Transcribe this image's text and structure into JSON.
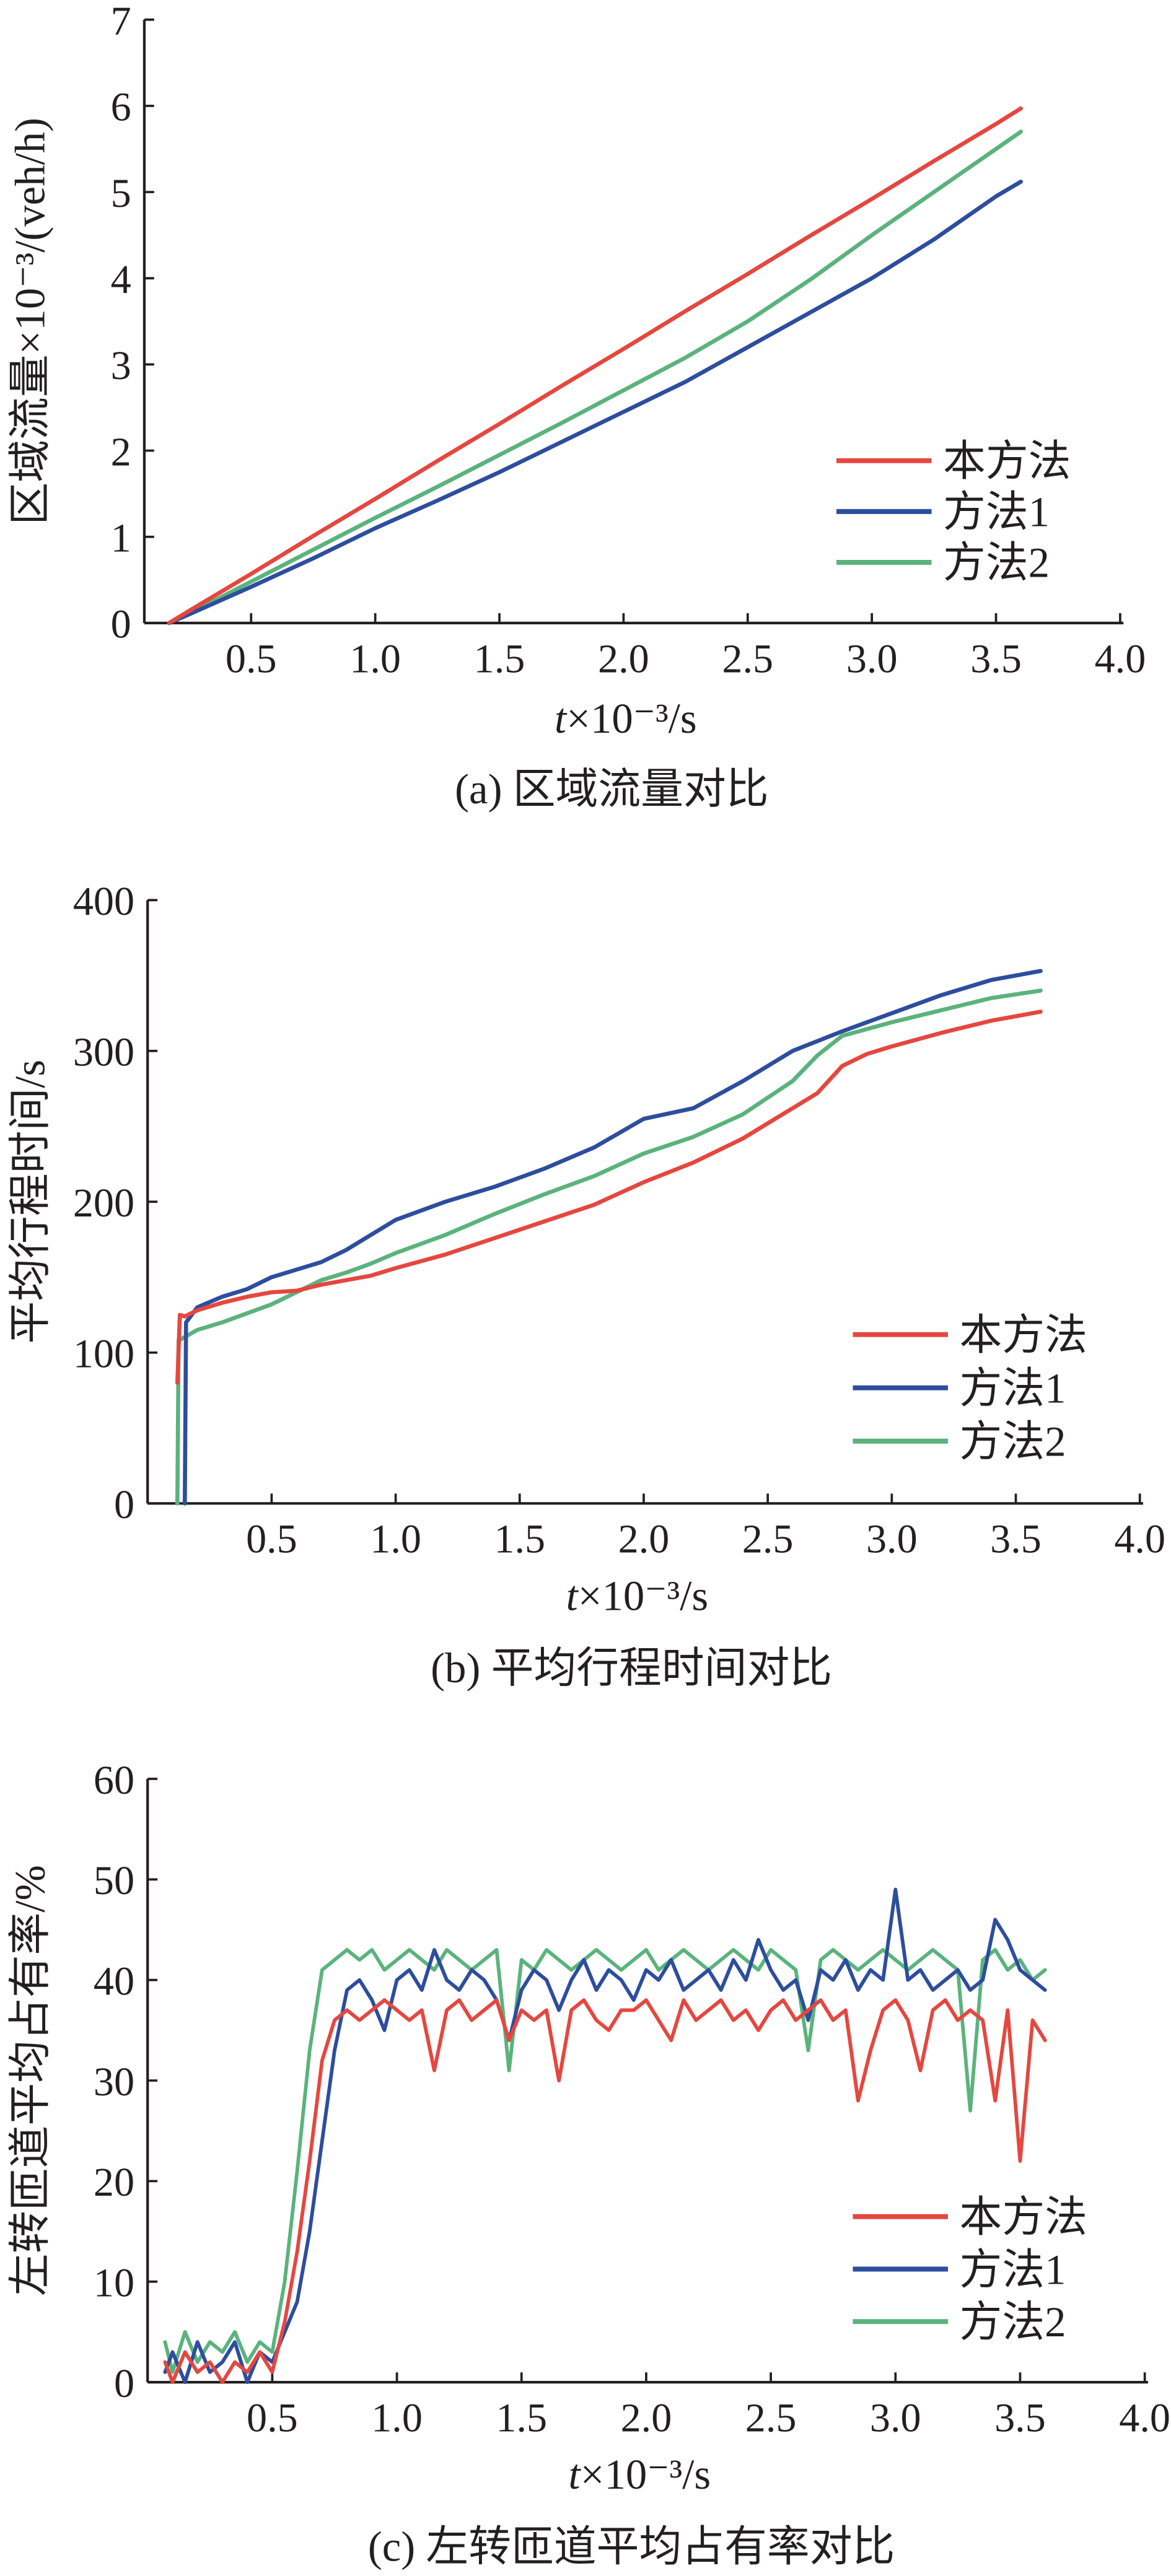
{
  "chart_data": [
    {
      "type": "line",
      "caption": "(a) 区域流量对比",
      "xlabel": "t×10⁻³/s",
      "ylabel": "区域流量×10⁻³/(veh/h)",
      "xlim": [
        0.07,
        4.0
      ],
      "ylim": [
        0,
        7
      ],
      "xticks": [
        "0.5",
        "1.0",
        "1.5",
        "2.0",
        "2.5",
        "3.0",
        "3.5",
        "4.0"
      ],
      "yticks": [
        "0",
        "1",
        "2",
        "3",
        "4",
        "5",
        "6",
        "7"
      ],
      "grid": false,
      "legend_position": "lower-right",
      "series": [
        {
          "name": "本方法",
          "color": "#e5473f",
          "x": [
            0.17,
            0.25,
            0.5,
            0.75,
            1.0,
            1.25,
            1.5,
            1.75,
            2.0,
            2.25,
            2.5,
            2.75,
            3.0,
            3.25,
            3.5,
            3.6
          ],
          "values": [
            0,
            0.14,
            0.57,
            1.01,
            1.44,
            1.88,
            2.31,
            2.75,
            3.18,
            3.62,
            4.05,
            4.49,
            4.92,
            5.36,
            5.79,
            5.97
          ]
        },
        {
          "name": "方法1",
          "color": "#2d4d9e",
          "x": [
            0.17,
            0.25,
            0.5,
            0.75,
            1.0,
            1.25,
            1.5,
            1.75,
            2.0,
            2.25,
            2.5,
            2.75,
            3.0,
            3.25,
            3.5,
            3.6
          ],
          "values": [
            0,
            0.1,
            0.42,
            0.75,
            1.1,
            1.42,
            1.75,
            2.1,
            2.45,
            2.8,
            3.2,
            3.6,
            4.0,
            4.45,
            4.95,
            5.12
          ]
        },
        {
          "name": "方法2",
          "color": "#5ab37c",
          "x": [
            0.17,
            0.25,
            0.5,
            0.75,
            1.0,
            1.25,
            1.5,
            1.75,
            2.0,
            2.25,
            2.5,
            2.75,
            3.0,
            3.25,
            3.5,
            3.6
          ],
          "values": [
            0,
            0.11,
            0.48,
            0.85,
            1.22,
            1.58,
            1.95,
            2.32,
            2.7,
            3.08,
            3.5,
            3.98,
            4.5,
            5.0,
            5.5,
            5.7
          ]
        }
      ]
    },
    {
      "type": "line",
      "caption": "(b) 平均行程时间对比",
      "xlabel": "t×10⁻³/s",
      "ylabel": "平均行程时间/s",
      "xlim": [
        0,
        4.0
      ],
      "ylim": [
        0,
        400
      ],
      "xticks": [
        "0.5",
        "1.0",
        "1.5",
        "2.0",
        "2.5",
        "3.0",
        "3.5",
        "4.0"
      ],
      "yticks": [
        "0",
        "100",
        "200",
        "300",
        "400"
      ],
      "grid": false,
      "legend_position": "lower-right",
      "series": [
        {
          "name": "本方法",
          "color": "#e5473f",
          "x": [
            0.12,
            0.13,
            0.15,
            0.2,
            0.3,
            0.4,
            0.5,
            0.6,
            0.7,
            0.8,
            0.9,
            1.0,
            1.2,
            1.4,
            1.6,
            1.8,
            2.0,
            2.2,
            2.4,
            2.6,
            2.7,
            2.8,
            2.9,
            3.0,
            3.2,
            3.4,
            3.6
          ],
          "values": [
            80,
            125,
            124,
            128,
            133,
            137,
            140,
            141,
            145,
            148,
            151,
            156,
            165,
            176,
            187,
            198,
            213,
            226,
            242,
            262,
            272,
            290,
            298,
            303,
            312,
            320,
            326
          ]
        },
        {
          "name": "方法1",
          "color": "#2d4d9e",
          "x": [
            0.15,
            0.155,
            0.2,
            0.3,
            0.4,
            0.5,
            0.6,
            0.7,
            0.8,
            0.9,
            1.0,
            1.2,
            1.4,
            1.6,
            1.8,
            2.0,
            2.2,
            2.4,
            2.6,
            2.8,
            3.0,
            3.2,
            3.4,
            3.6
          ],
          "values": [
            0,
            120,
            130,
            137,
            142,
            150,
            155,
            160,
            168,
            178,
            188,
            200,
            210,
            222,
            236,
            255,
            262,
            280,
            300,
            313,
            325,
            337,
            347,
            353
          ]
        },
        {
          "name": "方法2",
          "color": "#5ab37c",
          "x": [
            0.12,
            0.125,
            0.2,
            0.3,
            0.4,
            0.5,
            0.6,
            0.7,
            0.8,
            0.9,
            1.0,
            1.2,
            1.4,
            1.6,
            1.8,
            2.0,
            2.2,
            2.4,
            2.6,
            2.7,
            2.8,
            3.0,
            3.2,
            3.4,
            3.6
          ],
          "values": [
            0,
            108,
            115,
            120,
            126,
            132,
            140,
            148,
            153,
            159,
            166,
            178,
            192,
            205,
            217,
            232,
            243,
            258,
            280,
            297,
            310,
            319,
            327,
            335,
            340
          ]
        }
      ]
    },
    {
      "type": "line",
      "caption": "(c) 左转匝道平均占有率对比",
      "xlabel": "t×10⁻³/s",
      "ylabel": "左转匝道平均占有率/%",
      "xlim": [
        0,
        4.0
      ],
      "ylim": [
        0,
        60
      ],
      "xticks": [
        "0.5",
        "1.0",
        "1.5",
        "2.0",
        "2.5",
        "3.0",
        "3.5",
        "4.0"
      ],
      "yticks": [
        "0",
        "10",
        "20",
        "30",
        "40",
        "50",
        "60"
      ],
      "grid": false,
      "legend_position": "lower-right",
      "series": [
        {
          "name": "本方法",
          "color": "#e5473f",
          "x": [
            0.07,
            0.1,
            0.15,
            0.2,
            0.25,
            0.3,
            0.35,
            0.4,
            0.45,
            0.5,
            0.55,
            0.6,
            0.65,
            0.7,
            0.75,
            0.8,
            0.85,
            0.9,
            0.95,
            1.0,
            1.05,
            1.1,
            1.15,
            1.2,
            1.25,
            1.3,
            1.35,
            1.4,
            1.45,
            1.5,
            1.55,
            1.6,
            1.65,
            1.7,
            1.75,
            1.8,
            1.85,
            1.9,
            1.95,
            2.0,
            2.05,
            2.1,
            2.15,
            2.2,
            2.25,
            2.3,
            2.35,
            2.4,
            2.45,
            2.5,
            2.55,
            2.6,
            2.65,
            2.7,
            2.75,
            2.8,
            2.85,
            2.9,
            2.95,
            3.0,
            3.05,
            3.1,
            3.15,
            3.2,
            3.25,
            3.3,
            3.35,
            3.4,
            3.45,
            3.5,
            3.55,
            3.6
          ],
          "values": [
            2,
            0,
            3,
            1,
            2,
            0,
            2,
            1,
            3,
            1,
            6,
            13,
            22,
            32,
            36,
            37,
            36,
            37,
            38,
            37,
            36,
            37,
            31,
            37,
            38,
            36,
            37,
            38,
            34,
            37,
            36,
            37,
            30,
            37,
            38,
            36,
            35,
            37,
            37,
            38,
            36,
            34,
            38,
            36,
            37,
            38,
            36,
            37,
            35,
            37,
            38,
            36,
            37,
            38,
            36,
            37,
            28,
            33,
            37,
            38,
            36,
            31,
            37,
            38,
            36,
            37,
            36,
            28,
            37,
            22,
            36,
            34
          ]
        },
        {
          "name": "方法1",
          "color": "#2d4d9e",
          "x": [
            0.07,
            0.1,
            0.15,
            0.2,
            0.25,
            0.3,
            0.35,
            0.4,
            0.45,
            0.5,
            0.55,
            0.6,
            0.65,
            0.7,
            0.75,
            0.8,
            0.85,
            0.9,
            0.95,
            1.0,
            1.05,
            1.1,
            1.15,
            1.2,
            1.25,
            1.3,
            1.35,
            1.4,
            1.45,
            1.5,
            1.55,
            1.6,
            1.65,
            1.7,
            1.75,
            1.8,
            1.85,
            1.9,
            1.95,
            2.0,
            2.05,
            2.1,
            2.15,
            2.2,
            2.25,
            2.3,
            2.35,
            2.4,
            2.45,
            2.5,
            2.55,
            2.6,
            2.65,
            2.7,
            2.75,
            2.8,
            2.85,
            2.9,
            2.95,
            3.0,
            3.05,
            3.1,
            3.15,
            3.2,
            3.25,
            3.3,
            3.35,
            3.4,
            3.45,
            3.5,
            3.55,
            3.6
          ],
          "values": [
            1,
            3,
            0,
            4,
            1,
            2,
            4,
            0,
            3,
            2,
            5,
            8,
            15,
            24,
            33,
            39,
            40,
            38,
            35,
            40,
            41,
            39,
            43,
            40,
            39,
            41,
            40,
            38,
            34,
            39,
            41,
            40,
            37,
            40,
            42,
            39,
            41,
            40,
            38,
            41,
            40,
            42,
            39,
            40,
            41,
            39,
            42,
            40,
            44,
            41,
            39,
            40,
            36,
            41,
            40,
            42,
            39,
            41,
            40,
            49,
            40,
            41,
            39,
            40,
            41,
            39,
            40,
            46,
            44,
            41,
            40,
            39
          ]
        },
        {
          "name": "方法2",
          "color": "#5ab37c",
          "x": [
            0.07,
            0.1,
            0.15,
            0.2,
            0.25,
            0.3,
            0.35,
            0.4,
            0.45,
            0.5,
            0.55,
            0.6,
            0.65,
            0.7,
            0.75,
            0.8,
            0.85,
            0.9,
            0.95,
            1.0,
            1.05,
            1.1,
            1.15,
            1.2,
            1.25,
            1.3,
            1.35,
            1.4,
            1.45,
            1.5,
            1.55,
            1.6,
            1.65,
            1.7,
            1.75,
            1.8,
            1.85,
            1.9,
            1.95,
            2.0,
            2.05,
            2.1,
            2.15,
            2.2,
            2.25,
            2.3,
            2.35,
            2.4,
            2.45,
            2.5,
            2.55,
            2.6,
            2.65,
            2.7,
            2.75,
            2.8,
            2.85,
            2.9,
            2.95,
            3.0,
            3.05,
            3.1,
            3.15,
            3.2,
            3.25,
            3.3,
            3.35,
            3.4,
            3.45,
            3.5,
            3.55,
            3.6
          ],
          "values": [
            4,
            1,
            5,
            2,
            4,
            3,
            5,
            2,
            4,
            3,
            10,
            21,
            33,
            41,
            42,
            43,
            42,
            43,
            41,
            42,
            43,
            42,
            41,
            43,
            42,
            41,
            42,
            43,
            31,
            42,
            41,
            43,
            42,
            41,
            42,
            43,
            42,
            41,
            42,
            43,
            41,
            42,
            43,
            42,
            41,
            42,
            43,
            42,
            41,
            43,
            42,
            41,
            33,
            42,
            43,
            42,
            41,
            42,
            43,
            42,
            41,
            42,
            43,
            42,
            41,
            27,
            42,
            43,
            41,
            42,
            40,
            41
          ]
        }
      ]
    }
  ]
}
